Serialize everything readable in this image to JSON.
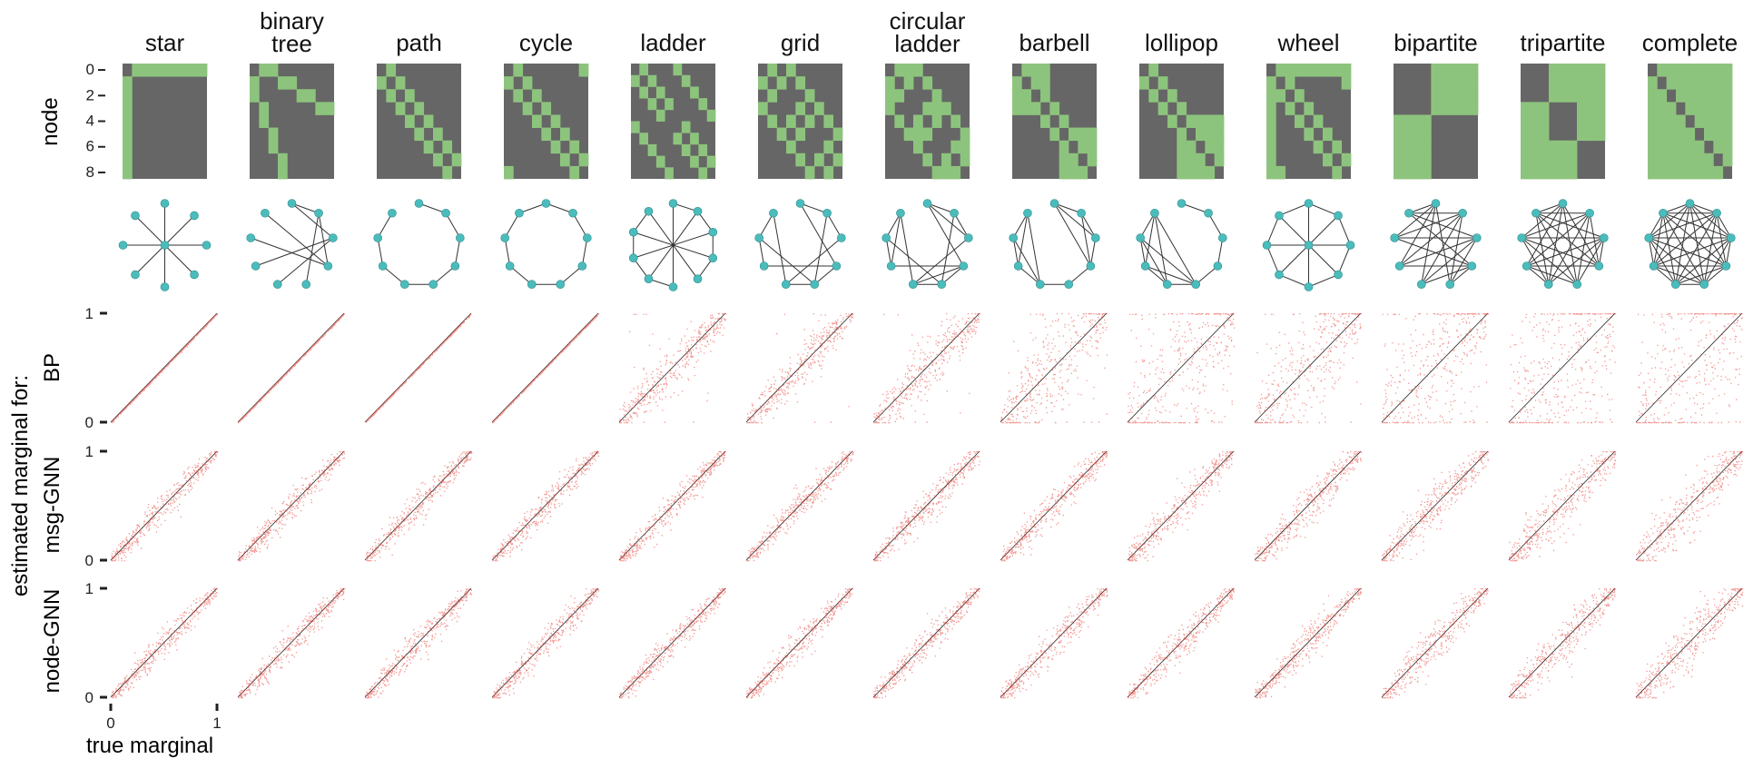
{
  "figure": {
    "row_labels": {
      "adjacency_axis": "node",
      "estimated": "estimated marginal for:",
      "methods": [
        "BP",
        "msg-GNN",
        "node-GNN"
      ]
    },
    "x_axis_label": "true marginal",
    "adjacency_ticks": [
      "0",
      "2",
      "4",
      "6",
      "8"
    ],
    "scatter_ticks": {
      "y": [
        "0",
        "1"
      ],
      "x": [
        "0",
        "1"
      ]
    }
  },
  "colors": {
    "edge": "#8dc47d",
    "no_edge": "#666666",
    "node": "#4bbcbc",
    "point": "#e8463c",
    "diagonal": "#222222"
  },
  "chart_data": {
    "type": "scatter",
    "panel_grid": "3 method rows x 13 graph columns",
    "graphs": [
      {
        "name": [
          "star"
        ],
        "n": 9,
        "edges": [
          [
            0,
            1
          ],
          [
            0,
            2
          ],
          [
            0,
            3
          ],
          [
            0,
            4
          ],
          [
            0,
            5
          ],
          [
            0,
            6
          ],
          [
            0,
            7
          ],
          [
            0,
            8
          ]
        ]
      },
      {
        "name": [
          "binary",
          "tree"
        ],
        "n": 9,
        "edges": [
          [
            0,
            1
          ],
          [
            0,
            2
          ],
          [
            1,
            3
          ],
          [
            1,
            4
          ],
          [
            2,
            5
          ],
          [
            2,
            6
          ],
          [
            3,
            7
          ],
          [
            3,
            8
          ]
        ]
      },
      {
        "name": [
          "path"
        ],
        "n": 9,
        "edges": [
          [
            0,
            1
          ],
          [
            1,
            2
          ],
          [
            2,
            3
          ],
          [
            3,
            4
          ],
          [
            4,
            5
          ],
          [
            5,
            6
          ],
          [
            6,
            7
          ],
          [
            7,
            8
          ]
        ]
      },
      {
        "name": [
          "cycle"
        ],
        "n": 9,
        "edges": [
          [
            0,
            1
          ],
          [
            1,
            2
          ],
          [
            2,
            3
          ],
          [
            3,
            4
          ],
          [
            4,
            5
          ],
          [
            5,
            6
          ],
          [
            6,
            7
          ],
          [
            7,
            8
          ],
          [
            0,
            8
          ]
        ]
      },
      {
        "name": [
          "ladder"
        ],
        "n": 10,
        "edges": [
          [
            0,
            1
          ],
          [
            1,
            2
          ],
          [
            2,
            3
          ],
          [
            3,
            4
          ],
          [
            5,
            6
          ],
          [
            6,
            7
          ],
          [
            7,
            8
          ],
          [
            8,
            9
          ],
          [
            0,
            5
          ],
          [
            1,
            6
          ],
          [
            2,
            7
          ],
          [
            3,
            8
          ],
          [
            4,
            9
          ]
        ]
      },
      {
        "name": [
          "grid"
        ],
        "n": 9,
        "edges": [
          [
            0,
            1
          ],
          [
            1,
            2
          ],
          [
            3,
            4
          ],
          [
            4,
            5
          ],
          [
            6,
            7
          ],
          [
            7,
            8
          ],
          [
            0,
            3
          ],
          [
            3,
            6
          ],
          [
            1,
            4
          ],
          [
            4,
            7
          ],
          [
            2,
            5
          ],
          [
            5,
            8
          ]
        ]
      },
      {
        "name": [
          "circular",
          "ladder"
        ],
        "n": 9,
        "edges": [
          [
            0,
            1
          ],
          [
            1,
            2
          ],
          [
            0,
            2
          ],
          [
            3,
            4
          ],
          [
            4,
            5
          ],
          [
            3,
            5
          ],
          [
            6,
            7
          ],
          [
            7,
            8
          ],
          [
            6,
            8
          ],
          [
            0,
            3
          ],
          [
            1,
            4
          ],
          [
            2,
            5
          ],
          [
            3,
            6
          ],
          [
            4,
            7
          ],
          [
            5,
            8
          ]
        ]
      },
      {
        "name": [
          "barbell"
        ],
        "n": 9,
        "edges": [
          [
            0,
            1
          ],
          [
            0,
            2
          ],
          [
            0,
            3
          ],
          [
            1,
            2
          ],
          [
            1,
            3
          ],
          [
            2,
            3
          ],
          [
            3,
            4
          ],
          [
            4,
            5
          ],
          [
            5,
            6
          ],
          [
            5,
            7
          ],
          [
            5,
            8
          ],
          [
            6,
            7
          ],
          [
            6,
            8
          ],
          [
            7,
            8
          ]
        ]
      },
      {
        "name": [
          "lollipop"
        ],
        "n": 9,
        "edges": [
          [
            0,
            1
          ],
          [
            1,
            2
          ],
          [
            2,
            3
          ],
          [
            3,
            4
          ],
          [
            4,
            5
          ],
          [
            4,
            6
          ],
          [
            4,
            7
          ],
          [
            4,
            8
          ],
          [
            5,
            6
          ],
          [
            5,
            7
          ],
          [
            5,
            8
          ],
          [
            6,
            7
          ],
          [
            6,
            8
          ],
          [
            7,
            8
          ]
        ]
      },
      {
        "name": [
          "wheel"
        ],
        "n": 9,
        "edges": [
          [
            0,
            1
          ],
          [
            0,
            2
          ],
          [
            0,
            3
          ],
          [
            0,
            4
          ],
          [
            0,
            5
          ],
          [
            0,
            6
          ],
          [
            0,
            7
          ],
          [
            0,
            8
          ],
          [
            1,
            2
          ],
          [
            2,
            3
          ],
          [
            3,
            4
          ],
          [
            4,
            5
          ],
          [
            5,
            6
          ],
          [
            6,
            7
          ],
          [
            7,
            8
          ],
          [
            1,
            8
          ]
        ]
      },
      {
        "name": [
          "bipartite"
        ],
        "n": 9,
        "groups": [
          [
            0,
            1,
            2,
            3
          ],
          [
            4,
            5,
            6,
            7,
            8
          ]
        ]
      },
      {
        "name": [
          "tripartite"
        ],
        "n": 9,
        "groups": [
          [
            0,
            1,
            2
          ],
          [
            3,
            4,
            5
          ],
          [
            6,
            7,
            8
          ]
        ]
      },
      {
        "name": [
          "complete"
        ],
        "n": 9,
        "complete": true
      }
    ],
    "methods": [
      "BP",
      "msg-GNN",
      "node-GNN"
    ],
    "xlim": [
      0,
      1
    ],
    "ylim": [
      0,
      1
    ],
    "scatter_spread": [
      [
        0.0,
        0.0,
        0.0,
        0.0,
        0.09,
        0.08,
        0.1,
        0.16,
        0.3,
        0.2,
        0.28,
        0.35,
        0.4
      ],
      [
        0.05,
        0.05,
        0.05,
        0.05,
        0.05,
        0.05,
        0.06,
        0.06,
        0.07,
        0.07,
        0.08,
        0.09,
        0.1
      ],
      [
        0.05,
        0.05,
        0.05,
        0.05,
        0.05,
        0.05,
        0.05,
        0.06,
        0.06,
        0.06,
        0.07,
        0.08,
        0.09
      ]
    ],
    "outlier_fraction": [
      [
        0,
        0,
        0,
        0,
        0.04,
        0.03,
        0.05,
        0.1,
        0.25,
        0.08,
        0.2,
        0.3,
        0.25
      ],
      [
        0,
        0,
        0,
        0,
        0,
        0,
        0,
        0,
        0,
        0,
        0,
        0,
        0
      ],
      [
        0,
        0,
        0,
        0,
        0,
        0,
        0,
        0,
        0,
        0,
        0,
        0,
        0
      ]
    ]
  }
}
